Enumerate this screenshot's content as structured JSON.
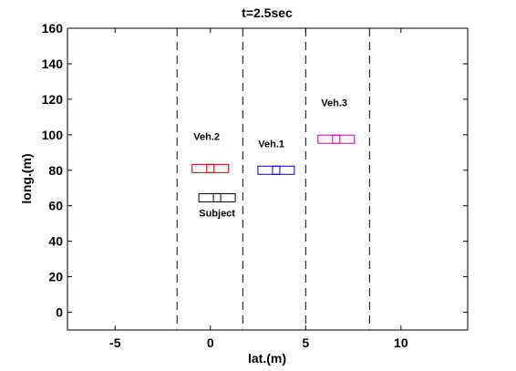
{
  "chart_data": {
    "type": "scatter",
    "title": "t=2.5sec",
    "xlabel": "lat.(m)",
    "ylabel": "long.(m)",
    "xlim": [
      -7.5,
      13.5
    ],
    "ylim": [
      -10,
      160
    ],
    "xticks": [
      -5,
      0,
      5,
      10
    ],
    "yticks": [
      0,
      20,
      40,
      60,
      80,
      100,
      120,
      140,
      160
    ],
    "grid": false,
    "lane_boundaries_x": [
      -1.75,
      1.7,
      5.0,
      8.35
    ],
    "vehicles": [
      {
        "label": "Veh.2",
        "color": "#c00000",
        "x": 0.0,
        "y": 81,
        "label_x": -0.2,
        "label_y": 97
      },
      {
        "label": "Veh.1",
        "color": "#0000c0",
        "x": 3.45,
        "y": 80,
        "label_x": 3.2,
        "label_y": 93
      },
      {
        "label": "Veh.3",
        "color": "#c000c0",
        "x": 6.6,
        "y": 97.5,
        "label_x": 6.5,
        "label_y": 116
      },
      {
        "label": "Subject",
        "color": "#000000",
        "x": 0.35,
        "y": 64.5,
        "label_x": 0.35,
        "label_y": 54
      }
    ]
  }
}
